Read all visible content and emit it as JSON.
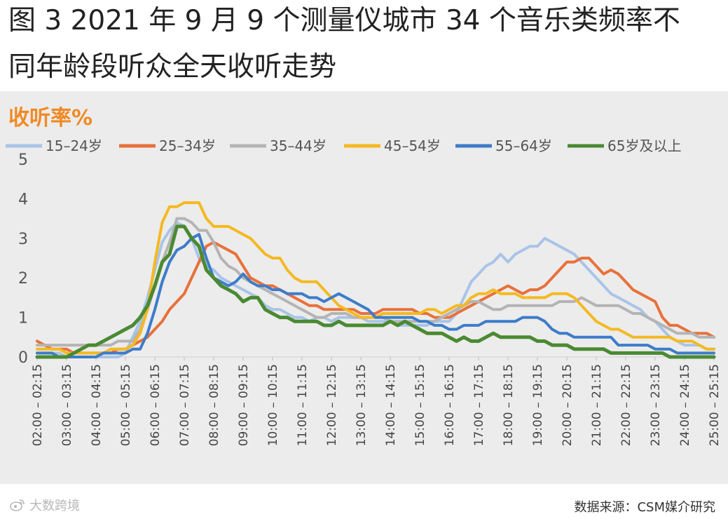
{
  "title": {
    "line1": "图 3 2021 年 9 月 9 个测量仪城市 34 个音乐类频率不",
    "line2": "同年龄段听众全天收听走势"
  },
  "footer": {
    "source": "数据来源：CSM媒介研究",
    "watermark_text": "大数跨境"
  },
  "colors": {
    "panel_bg": "#ececec",
    "ylabel_color": "#f08a24"
  },
  "chart_data": {
    "type": "line",
    "ylabel": "收听率%",
    "ylim": [
      0,
      5
    ],
    "yticks": [
      0,
      1,
      2,
      3,
      4,
      5
    ],
    "grid": false,
    "legend_position": "top",
    "x_start": "02:00",
    "x_step_minutes": 15,
    "x_count": 93,
    "xtick_labels": [
      "02:00 – 02:15",
      "03:00 – 03:15",
      "04:00 – 04:15",
      "05:00 – 05:15",
      "06:00 – 06:15",
      "07:00 – 07:15",
      "08:00 – 08:15",
      "09:00 – 09:15",
      "10:00 – 10:15",
      "11:00 – 11:15",
      "12:00 – 12:15",
      "13:00 – 13:15",
      "14:00 – 14:15",
      "15:00 – 15:15",
      "16:00 – 16:15",
      "17:00 – 17:15",
      "18:00 – 18:15",
      "19:00 – 19:15",
      "20:00 – 20:15",
      "21:00 – 21:15",
      "22:00 – 22:15",
      "23:00 – 23:15",
      "24:00 – 24:15",
      "25:00 – 25:15"
    ],
    "series": [
      {
        "name": "15–24岁",
        "color": "#a9c4e8",
        "values": [
          0.1,
          0.1,
          0.1,
          0.1,
          0,
          0,
          0,
          0,
          0,
          0,
          0,
          0,
          0.1,
          0.5,
          0.9,
          1.5,
          2.2,
          2.9,
          3.2,
          3.4,
          3.3,
          3.0,
          2.5,
          2.3,
          2.2,
          2.0,
          1.9,
          1.8,
          1.7,
          1.6,
          1.5,
          1.3,
          1.2,
          1.2,
          1.1,
          1.0,
          1.0,
          0.9,
          1.0,
          1.0,
          0.9,
          1.0,
          1.0,
          1.0,
          1.0,
          0.9,
          0.9,
          0.9,
          0.9,
          0.8,
          0.8,
          0.8,
          0.8,
          0.8,
          0.9,
          0.9,
          0.9,
          1.1,
          1.5,
          1.9,
          2.1,
          2.3,
          2.4,
          2.6,
          2.4,
          2.6,
          2.7,
          2.8,
          2.8,
          3.0,
          2.9,
          2.8,
          2.7,
          2.6,
          2.4,
          2.2,
          2.0,
          1.8,
          1.6,
          1.5,
          1.4,
          1.3,
          1.2,
          1.0,
          0.9,
          0.7,
          0.5,
          0.4,
          0.3,
          0.3,
          0.3,
          0.2,
          0.2
        ]
      },
      {
        "name": "25–34岁",
        "color": "#e8713a",
        "values": [
          0.4,
          0.3,
          0.2,
          0.2,
          0.2,
          0.1,
          0.1,
          0.1,
          0.1,
          0.1,
          0.1,
          0.2,
          0.2,
          0.3,
          0.4,
          0.5,
          0.7,
          0.9,
          1.2,
          1.4,
          1.6,
          2.0,
          2.4,
          2.8,
          2.9,
          2.8,
          2.7,
          2.6,
          2.3,
          2.0,
          1.9,
          1.8,
          1.8,
          1.7,
          1.6,
          1.5,
          1.4,
          1.3,
          1.3,
          1.2,
          1.2,
          1.2,
          1.2,
          1.2,
          1.1,
          1.1,
          1.1,
          1.2,
          1.2,
          1.2,
          1.2,
          1.2,
          1.1,
          1.1,
          1.0,
          1.0,
          1.0,
          1.1,
          1.2,
          1.3,
          1.4,
          1.5,
          1.6,
          1.7,
          1.8,
          1.7,
          1.6,
          1.7,
          1.7,
          1.8,
          2.0,
          2.2,
          2.4,
          2.4,
          2.5,
          2.5,
          2.3,
          2.1,
          2.2,
          2.1,
          1.9,
          1.7,
          1.6,
          1.5,
          1.4,
          1.0,
          0.8,
          0.8,
          0.7,
          0.6,
          0.6,
          0.6,
          0.5
        ]
      },
      {
        "name": "35–44岁",
        "color": "#b4b4b4",
        "values": [
          0.3,
          0.3,
          0.3,
          0.3,
          0.3,
          0.3,
          0.3,
          0.3,
          0.3,
          0.3,
          0.3,
          0.4,
          0.4,
          0.4,
          0.7,
          1.2,
          1.8,
          2.4,
          2.9,
          3.5,
          3.5,
          3.4,
          3.2,
          3.2,
          2.9,
          2.5,
          2.3,
          2.2,
          2.0,
          1.9,
          1.8,
          1.7,
          1.6,
          1.5,
          1.4,
          1.3,
          1.2,
          1.1,
          1.0,
          1.0,
          1.1,
          1.1,
          1.1,
          1.0,
          1.0,
          1.0,
          1.0,
          1.0,
          0.9,
          0.9,
          0.9,
          0.9,
          0.9,
          0.9,
          0.9,
          1.0,
          1.1,
          1.2,
          1.3,
          1.4,
          1.4,
          1.3,
          1.2,
          1.2,
          1.3,
          1.3,
          1.3,
          1.3,
          1.3,
          1.3,
          1.3,
          1.4,
          1.4,
          1.4,
          1.5,
          1.4,
          1.3,
          1.3,
          1.3,
          1.3,
          1.2,
          1.1,
          1.1,
          1.0,
          0.9,
          0.8,
          0.7,
          0.6,
          0.6,
          0.6,
          0.5,
          0.5,
          0.5
        ]
      },
      {
        "name": "45–54岁",
        "color": "#f5b921",
        "values": [
          0.2,
          0.2,
          0.2,
          0.2,
          0.1,
          0.1,
          0.1,
          0.1,
          0.1,
          0.1,
          0.2,
          0.2,
          0.2,
          0.3,
          0.6,
          1.2,
          2.4,
          3.4,
          3.8,
          3.8,
          3.9,
          3.9,
          3.9,
          3.5,
          3.3,
          3.3,
          3.3,
          3.2,
          3.1,
          3.0,
          2.8,
          2.6,
          2.5,
          2.5,
          2.2,
          2.0,
          1.9,
          1.9,
          1.9,
          1.7,
          1.5,
          1.3,
          1.2,
          1.1,
          1.0,
          1.0,
          1.0,
          1.1,
          1.1,
          1.1,
          1.1,
          1.1,
          1.1,
          1.2,
          1.2,
          1.1,
          1.2,
          1.3,
          1.3,
          1.5,
          1.6,
          1.6,
          1.7,
          1.6,
          1.6,
          1.6,
          1.5,
          1.5,
          1.5,
          1.5,
          1.6,
          1.6,
          1.6,
          1.5,
          1.3,
          1.1,
          0.9,
          0.8,
          0.7,
          0.7,
          0.6,
          0.5,
          0.5,
          0.5,
          0.5,
          0.5,
          0.5,
          0.4,
          0.4,
          0.4,
          0.3,
          0.2,
          0.2
        ]
      },
      {
        "name": "55–64岁",
        "color": "#3d7cc9",
        "values": [
          0.1,
          0.1,
          0.1,
          0,
          0,
          0,
          0,
          0,
          0,
          0.1,
          0.1,
          0.1,
          0.1,
          0.2,
          0.2,
          0.6,
          1.2,
          1.9,
          2.4,
          2.7,
          2.8,
          3.0,
          3.1,
          2.5,
          2.0,
          1.9,
          1.8,
          1.9,
          2.1,
          1.9,
          1.8,
          1.8,
          1.7,
          1.7,
          1.6,
          1.6,
          1.6,
          1.5,
          1.5,
          1.4,
          1.5,
          1.6,
          1.5,
          1.4,
          1.3,
          1.2,
          1.0,
          1.0,
          1.0,
          1.0,
          1.0,
          1.0,
          0.9,
          0.9,
          0.8,
          0.8,
          0.7,
          0.7,
          0.8,
          0.8,
          0.8,
          0.9,
          0.9,
          0.9,
          0.9,
          0.9,
          1.0,
          1.0,
          1.0,
          0.9,
          0.7,
          0.6,
          0.6,
          0.5,
          0.5,
          0.5,
          0.5,
          0.5,
          0.5,
          0.3,
          0.3,
          0.3,
          0.3,
          0.3,
          0.2,
          0.2,
          0.2,
          0.1,
          0.1,
          0.1,
          0.1,
          0.1,
          0.1
        ]
      },
      {
        "name": "65岁及以上",
        "color": "#4a8a32",
        "values": [
          0.0,
          0.0,
          0.0,
          0.0,
          0.0,
          0.1,
          0.2,
          0.3,
          0.3,
          0.4,
          0.5,
          0.6,
          0.7,
          0.8,
          1.0,
          1.3,
          1.8,
          2.4,
          2.6,
          3.3,
          3.3,
          3.0,
          2.8,
          2.2,
          2.0,
          1.8,
          1.7,
          1.6,
          1.4,
          1.5,
          1.5,
          1.2,
          1.1,
          1.0,
          1.0,
          0.9,
          0.9,
          0.9,
          0.9,
          0.8,
          0.8,
          0.9,
          0.8,
          0.8,
          0.8,
          0.8,
          0.8,
          0.8,
          0.9,
          0.8,
          0.9,
          0.8,
          0.7,
          0.6,
          0.6,
          0.6,
          0.5,
          0.4,
          0.5,
          0.4,
          0.4,
          0.5,
          0.6,
          0.5,
          0.5,
          0.5,
          0.5,
          0.5,
          0.4,
          0.4,
          0.3,
          0.3,
          0.3,
          0.2,
          0.2,
          0.2,
          0.2,
          0.2,
          0.1,
          0.1,
          0.1,
          0.1,
          0.1,
          0.1,
          0.1,
          0.1,
          0.0,
          0.0,
          0.0,
          0.0,
          0.0,
          0.0,
          0.0
        ]
      }
    ]
  }
}
